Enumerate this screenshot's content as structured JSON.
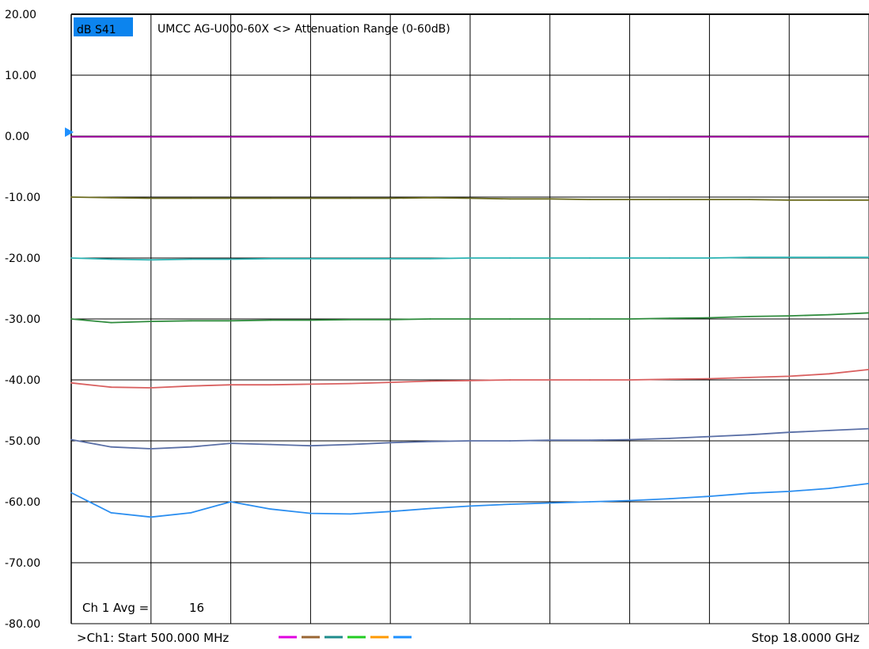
{
  "header": {
    "measurement_label": "dB S41",
    "title": "UMCC  AG-U000-60X <> Attenuation Range (0-60dB)"
  },
  "overlay": {
    "avg_label": "Ch 1 Avg =",
    "avg_value": "16"
  },
  "footer": {
    "start_label": ">Ch1: Start  500.000 MHz",
    "stop_label": "Stop  18.0000 GHz"
  },
  "colors": {
    "highlight": "#0c84ee",
    "reference_marker": "#1e90ff",
    "legend_swatches": [
      "#e000e0",
      "#996633",
      "#1e8c8c",
      "#22cc22",
      "#ff9900",
      "#1e90ff"
    ]
  },
  "chart_data": {
    "type": "line",
    "title": "UMCC  AG-U000-60X <> Attenuation Range (0-60dB)",
    "ylabel": "dB S41",
    "x_range_ghz": [
      0.5,
      18.0
    ],
    "ylim": [
      -80,
      20
    ],
    "y_ticks": [
      "20.00",
      "10.00",
      "0.00",
      "-10.00",
      "-20.00",
      "-30.00",
      "-40.00",
      "-50.00",
      "-60.00",
      "-70.00",
      "-80.00"
    ],
    "x_divisions": 10,
    "grid": true,
    "reference_level": 0,
    "x": [
      0.5,
      1.375,
      2.25,
      3.125,
      4.0,
      4.875,
      5.75,
      6.625,
      7.5,
      8.375,
      9.25,
      10.125,
      11.0,
      11.875,
      12.75,
      13.625,
      14.5,
      15.375,
      16.25,
      17.125,
      18.0
    ],
    "series": [
      {
        "color": "#9b009b",
        "values": [
          -0.1,
          -0.1,
          -0.1,
          -0.1,
          -0.1,
          -0.1,
          -0.1,
          -0.1,
          -0.1,
          -0.1,
          -0.1,
          -0.1,
          -0.1,
          -0.1,
          -0.1,
          -0.1,
          -0.1,
          -0.1,
          -0.1,
          -0.1,
          -0.1
        ]
      },
      {
        "color": "#6b6b1e",
        "values": [
          -10.0,
          -10.1,
          -10.2,
          -10.2,
          -10.2,
          -10.2,
          -10.2,
          -10.2,
          -10.2,
          -10.1,
          -10.2,
          -10.3,
          -10.3,
          -10.4,
          -10.4,
          -10.4,
          -10.4,
          -10.4,
          -10.5,
          -10.5,
          -10.5
        ]
      },
      {
        "color": "#2ab3b3",
        "values": [
          -20.0,
          -20.2,
          -20.3,
          -20.2,
          -20.2,
          -20.1,
          -20.1,
          -20.1,
          -20.1,
          -20.1,
          -20.0,
          -20.0,
          -20.0,
          -20.0,
          -20.0,
          -20.0,
          -20.0,
          -19.9,
          -19.9,
          -19.9,
          -19.9
        ]
      },
      {
        "color": "#2e8b3c",
        "values": [
          -30.0,
          -30.6,
          -30.4,
          -30.3,
          -30.3,
          -30.2,
          -30.2,
          -30.1,
          -30.1,
          -30.0,
          -30.0,
          -30.0,
          -30.0,
          -30.0,
          -30.0,
          -29.9,
          -29.8,
          -29.6,
          -29.5,
          -29.3,
          -29.0
        ]
      },
      {
        "color": "#d96060",
        "values": [
          -40.5,
          -41.2,
          -41.3,
          -41.0,
          -40.8,
          -40.8,
          -40.7,
          -40.6,
          -40.4,
          -40.2,
          -40.1,
          -40.0,
          -40.0,
          -40.0,
          -40.0,
          -39.9,
          -39.8,
          -39.6,
          -39.4,
          -39.0,
          -38.3
        ]
      },
      {
        "color": "#5a6fa6",
        "values": [
          -49.8,
          -51.0,
          -51.3,
          -51.0,
          -50.4,
          -50.6,
          -50.8,
          -50.6,
          -50.3,
          -50.1,
          -50.0,
          -50.0,
          -49.9,
          -49.9,
          -49.8,
          -49.6,
          -49.3,
          -49.0,
          -48.6,
          -48.3,
          -48.0
        ]
      },
      {
        "color": "#2b8ef0",
        "values": [
          -58.5,
          -61.8,
          -62.5,
          -61.8,
          -60.0,
          -61.2,
          -61.9,
          -62.0,
          -61.6,
          -61.1,
          -60.7,
          -60.4,
          -60.2,
          -60.0,
          -59.8,
          -59.5,
          -59.1,
          -58.6,
          -58.3,
          -57.8,
          -57.0
        ]
      }
    ]
  }
}
